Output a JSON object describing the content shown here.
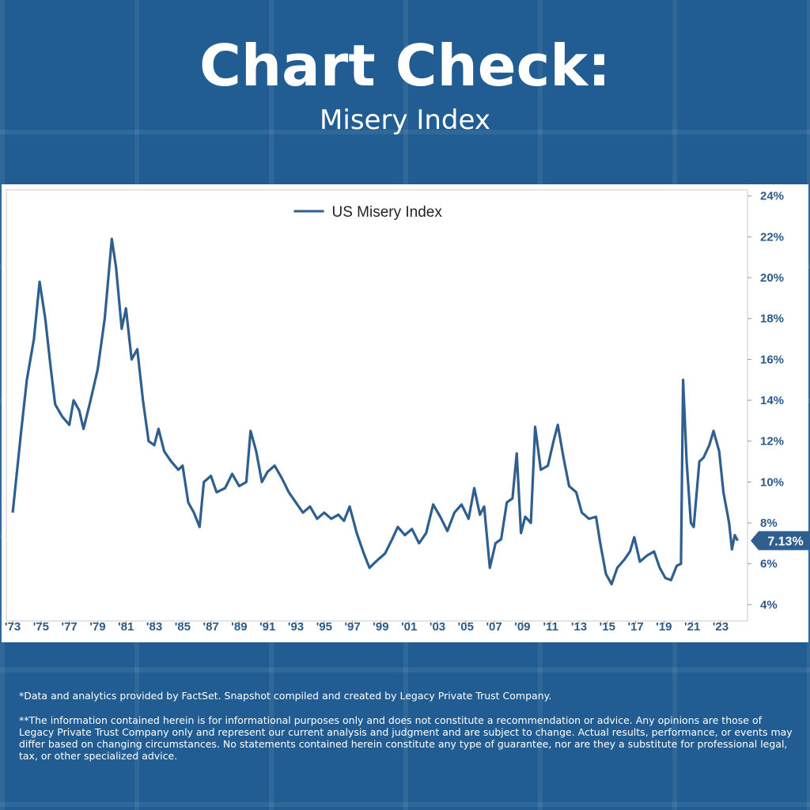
{
  "chart_data": {
    "type": "line",
    "title": "Chart Check:",
    "subtitle": "Misery Index",
    "x": [
      1973.0,
      1973.3,
      1973.6,
      1974.0,
      1974.5,
      1974.9,
      1975.3,
      1975.7,
      1976.0,
      1976.5,
      1977.0,
      1977.3,
      1977.7,
      1978.0,
      1978.5,
      1979.0,
      1979.5,
      1980.0,
      1980.3,
      1980.7,
      1981.0,
      1981.4,
      1981.8,
      1982.2,
      1982.6,
      1983.0,
      1983.3,
      1983.7,
      1984.2,
      1984.7,
      1985.0,
      1985.4,
      1985.8,
      1986.2,
      1986.5,
      1987.0,
      1987.4,
      1988.0,
      1988.5,
      1989.0,
      1989.5,
      1989.8,
      1990.2,
      1990.6,
      1991.0,
      1991.5,
      1992.0,
      1992.5,
      1993.0,
      1993.5,
      1994.0,
      1994.5,
      1995.0,
      1995.5,
      1996.0,
      1996.4,
      1996.8,
      1997.3,
      1997.8,
      1998.2,
      1998.8,
      1999.3,
      1999.8,
      2000.2,
      2000.7,
      2001.2,
      2001.7,
      2002.2,
      2002.7,
      2003.2,
      2003.7,
      2004.2,
      2004.7,
      2005.2,
      2005.6,
      2006.0,
      2006.3,
      2006.7,
      2007.1,
      2007.5,
      2007.9,
      2008.3,
      2008.6,
      2008.9,
      2009.2,
      2009.6,
      2009.9,
      2010.3,
      2010.8,
      2011.2,
      2011.5,
      2011.9,
      2012.3,
      2012.8,
      2013.2,
      2013.7,
      2014.2,
      2014.5,
      2014.9,
      2015.3,
      2015.7,
      2016.2,
      2016.6,
      2016.9,
      2017.3,
      2017.8,
      2018.3,
      2018.7,
      2019.1,
      2019.5,
      2019.9,
      2020.2,
      2020.35,
      2020.6,
      2020.9,
      2021.1,
      2021.5,
      2021.8,
      2022.2,
      2022.5,
      2022.9,
      2023.2,
      2023.6,
      2023.8,
      2024.0,
      2024.2
    ],
    "series": [
      {
        "name": "US Misery Index",
        "color": "#2e5f8f",
        "values": [
          8.5,
          10.5,
          12.5,
          15,
          17,
          19.8,
          18,
          15.5,
          13.8,
          13.2,
          12.8,
          14,
          13.5,
          12.6,
          14,
          15.5,
          18,
          21.9,
          20.5,
          17.5,
          18.5,
          16,
          16.5,
          14,
          12,
          11.8,
          12.6,
          11.5,
          11,
          10.6,
          10.8,
          9,
          8.5,
          7.8,
          10,
          10.3,
          9.5,
          9.7,
          10.4,
          9.8,
          10,
          12.5,
          11.5,
          10,
          10.5,
          10.8,
          10.2,
          9.5,
          9,
          8.5,
          8.8,
          8.2,
          8.5,
          8.2,
          8.4,
          8.1,
          8.8,
          7.5,
          6.5,
          5.8,
          6.2,
          6.5,
          7.2,
          7.8,
          7.4,
          7.7,
          7,
          7.5,
          8.9,
          8.3,
          7.6,
          8.5,
          8.9,
          8.2,
          9.7,
          8.4,
          8.8,
          5.8,
          7,
          7.2,
          9,
          9.2,
          11.4,
          7.5,
          8.3,
          8,
          12.7,
          10.6,
          10.8,
          12,
          12.8,
          11.2,
          9.8,
          9.5,
          8.5,
          8.2,
          8.3,
          7,
          5.5,
          5,
          5.8,
          6.2,
          6.6,
          7.3,
          6.1,
          6.4,
          6.6,
          5.8,
          5.3,
          5.2,
          5.9,
          6,
          15,
          11,
          8,
          7.8,
          11,
          11.2,
          11.8,
          12.5,
          11.5,
          9.5,
          8,
          6.7,
          7.4,
          7.13
        ],
        "value_labels": [
          null,
          null,
          null,
          null,
          null,
          null,
          null,
          null,
          null,
          null,
          null,
          null,
          null,
          null,
          null,
          null,
          null,
          null,
          null,
          null,
          null,
          null,
          null,
          null,
          null,
          null,
          null,
          null,
          null,
          null,
          null,
          null,
          null,
          null,
          null,
          null,
          null,
          null,
          null,
          null,
          null,
          null,
          null,
          null,
          null,
          null,
          null,
          null,
          null,
          null,
          null,
          null,
          null,
          null,
          null,
          null,
          null,
          null,
          null,
          null,
          null,
          null,
          null,
          null,
          null,
          null,
          null,
          null,
          null,
          null,
          null,
          null,
          null,
          null,
          null,
          null,
          null,
          null,
          null,
          null,
          null,
          null,
          null,
          null,
          null,
          null,
          null,
          null,
          null,
          null,
          null,
          null,
          null,
          null,
          null,
          null,
          null,
          null,
          null,
          null,
          null,
          null,
          null,
          null,
          null,
          null,
          null,
          null,
          null,
          null,
          null,
          null,
          null,
          null,
          null,
          null,
          null,
          null,
          null,
          null,
          null,
          null,
          null,
          null,
          null,
          "7.13%"
        ]
      }
    ],
    "xlim": [
      1972.55,
      2024.9
    ],
    "xticks": [
      {
        "value": 1973,
        "label": "'73"
      },
      {
        "value": 1975,
        "label": "'75"
      },
      {
        "value": 1977,
        "label": "'77"
      },
      {
        "value": 1979,
        "label": "'79"
      },
      {
        "value": 1981,
        "label": "'81"
      },
      {
        "value": 1983,
        "label": "'83"
      },
      {
        "value": 1985,
        "label": "'85"
      },
      {
        "value": 1987,
        "label": "'87"
      },
      {
        "value": 1989,
        "label": "'89"
      },
      {
        "value": 1991,
        "label": "'91"
      },
      {
        "value": 1993,
        "label": "'93"
      },
      {
        "value": 1995,
        "label": "'95"
      },
      {
        "value": 1997,
        "label": "'97"
      },
      {
        "value": 1999,
        "label": "'99"
      },
      {
        "value": 2001,
        "label": "'01"
      },
      {
        "value": 2003,
        "label": "'03"
      },
      {
        "value": 2005,
        "label": "'05"
      },
      {
        "value": 2007,
        "label": "'07"
      },
      {
        "value": 2009,
        "label": "'09"
      },
      {
        "value": 2011,
        "label": "'11"
      },
      {
        "value": 2013,
        "label": "'13"
      },
      {
        "value": 2015,
        "label": "'15"
      },
      {
        "value": 2017,
        "label": "'17"
      },
      {
        "value": 2019,
        "label": "'19"
      },
      {
        "value": 2021,
        "label": "'21"
      },
      {
        "value": 2023,
        "label": "'23"
      }
    ],
    "ylim": [
      3.2,
      24.3
    ],
    "yticks": [
      {
        "value": 4,
        "label": "4%"
      },
      {
        "value": 6,
        "label": "6%"
      },
      {
        "value": 8,
        "label": "8%"
      },
      {
        "value": 10,
        "label": "10%"
      },
      {
        "value": 12,
        "label": "12%"
      },
      {
        "value": 14,
        "label": "14%"
      },
      {
        "value": 16,
        "label": "16%"
      },
      {
        "value": 18,
        "label": "18%"
      },
      {
        "value": 20,
        "label": "20%"
      },
      {
        "value": 22,
        "label": "22%"
      },
      {
        "value": 24,
        "label": "24%"
      }
    ],
    "grid": false,
    "legend": "top",
    "footnotes": [
      "*Data and analytics provided by FactSet. Snapshot compiled and created by Legacy Private Trust Company.",
      "**The information contained herein is for informational purposes only and does not constitute a recommendation or advice. Any opinions are those of Legacy Private Trust Company only and represent our current analysis and judgment and are subject to change. Actual results, performance, or events may differ based on changing circumstances. No statements contained herein constitute any type of guarantee, nor are they a substitute for professional legal, tax, or other specialized advice."
    ]
  }
}
